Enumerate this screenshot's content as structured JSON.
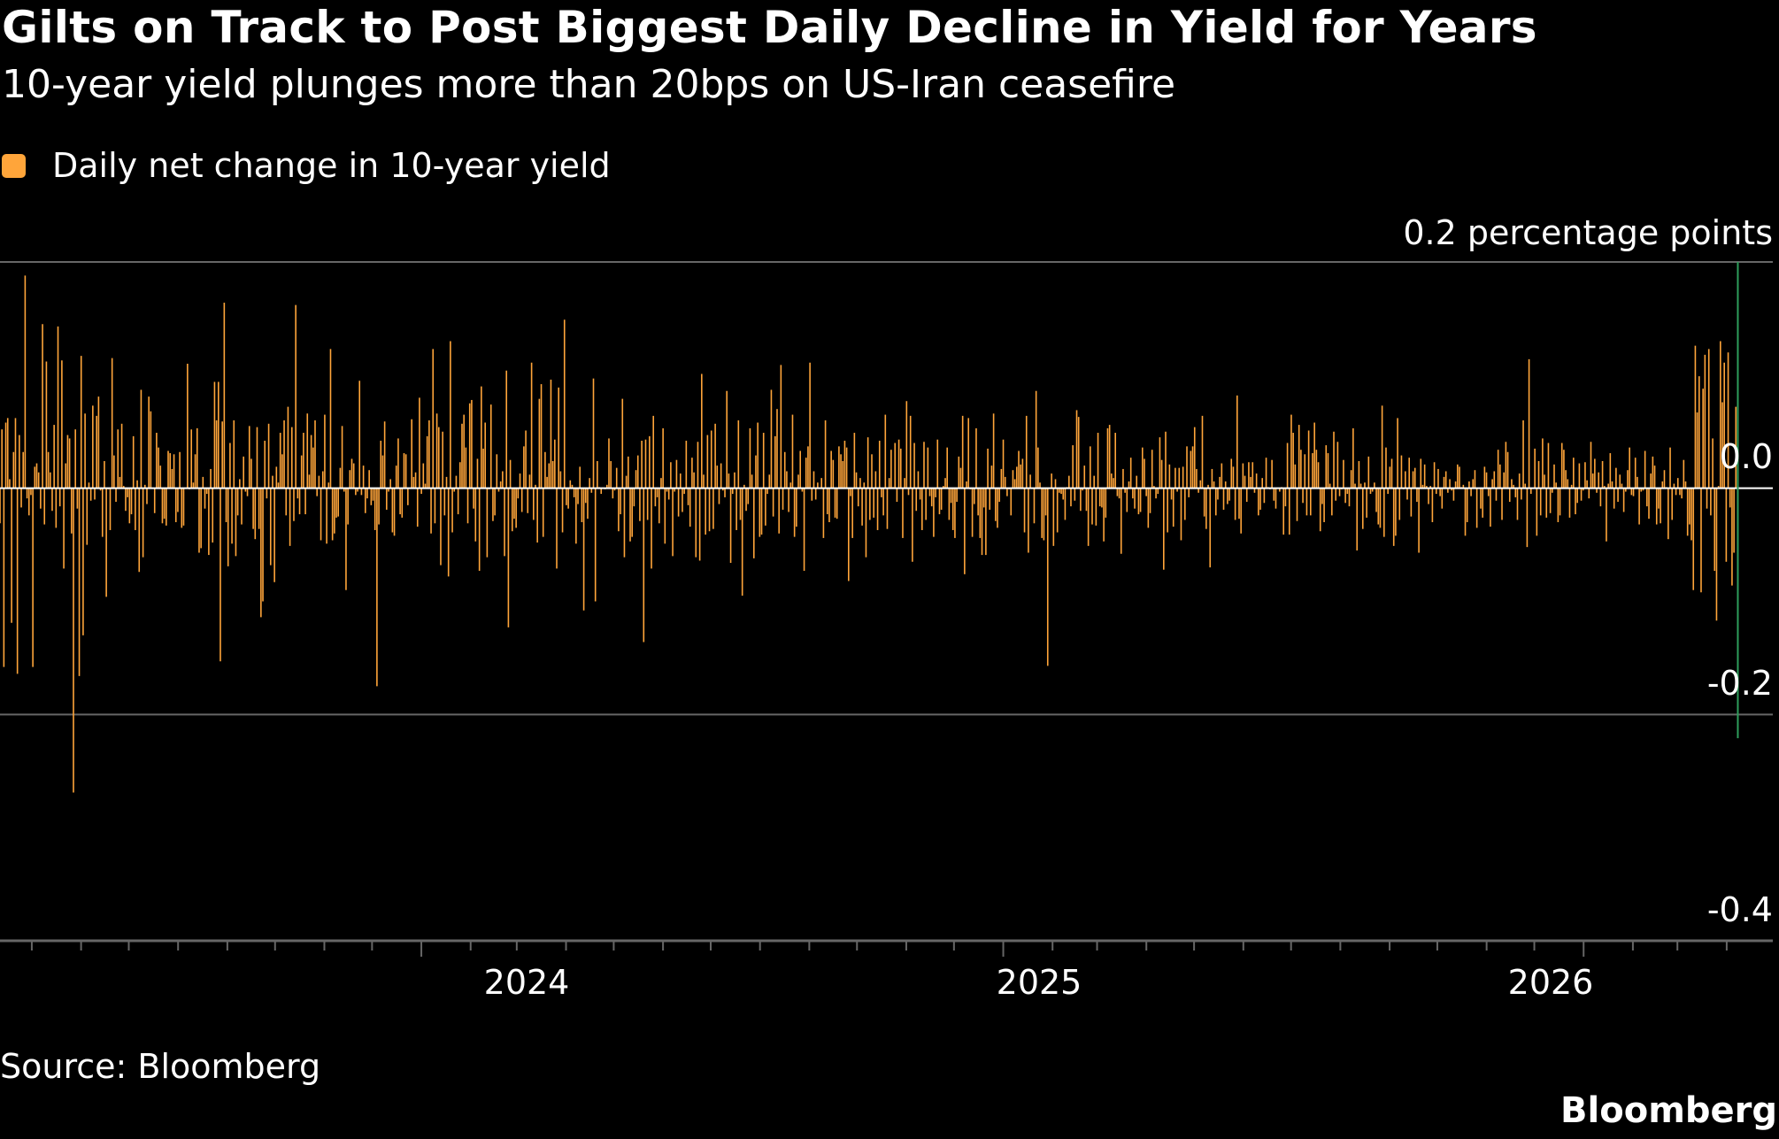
{
  "colors": {
    "background": "#000000",
    "bar": "#ffa53a",
    "zero_line": "#ffffff",
    "gridline": "#666666",
    "latest_bar": "#2f9e5c"
  },
  "chart_data": {
    "type": "bar",
    "title": "Gilts on Track to Post Biggest Daily Decline in Yield for Years",
    "subtitle": "10-year yield plunges more than 20bps on US-Iran ceasefire",
    "legend": {
      "position": "top-left",
      "entries": [
        "Daily net change in 10-year yield"
      ]
    },
    "y_unit_label": "0.2 percentage points",
    "y_tick_labels": [
      "0.0",
      "-0.2",
      "-0.4"
    ],
    "ylim": [
      -0.4,
      0.2
    ],
    "y_ticks": [
      0.2,
      0.0,
      -0.2,
      -0.4
    ],
    "x_range": [
      "2023-04-11",
      "2026-04-30"
    ],
    "x_tick_labels": [
      "2024",
      "2025",
      "2026"
    ],
    "x_ticks": [
      "2024-01-01",
      "2025-01-01",
      "2026-01-01"
    ],
    "grid": "horizontal",
    "series": [
      {
        "name": "Daily net change in 10-year yield",
        "color": "#ffa53a",
        "x_start": "2023-04-11",
        "x_end": "2026-04-08",
        "values": [
          -0.031,
          0.052,
          -0.158,
          0.058,
          0.062,
          0.008,
          -0.119,
          0.032,
          0.062,
          -0.164,
          0.047,
          -0.017,
          0.032,
          0.188,
          -0.009,
          -0.024,
          -0.006,
          -0.158,
          0.019,
          0.022,
          0.014,
          -0.018,
          0.145,
          -0.032,
          0.112,
          0.032,
          0.014,
          -0.02,
          0.056,
          -0.035,
          0.143,
          -0.016,
          0.113,
          -0.071,
          0.022,
          0.047,
          0.044,
          -0.04,
          -0.269,
          0.052,
          -0.018,
          -0.166,
          0.117,
          -0.13,
          0.066,
          -0.05,
          0.005,
          -0.011,
          0.073,
          -0.01,
          0.064,
          0.081,
          -0.002,
          -0.043,
          0.024,
          -0.096,
          -0.001,
          -0.037,
          0.115,
          0.029,
          -0.012,
          0.052,
          0.01,
          0.057,
          0.002,
          -0.02,
          -0.008,
          -0.031,
          -0.023,
          0.046,
          -0.037,
          0.007,
          -0.074,
          0.087,
          -0.061,
          0.003,
          -0.014,
          0.081,
          0.068,
          0.0,
          -0.022,
          0.049,
          0.036,
          0.02,
          -0.031,
          -0.027,
          -0.033,
          0.033,
          0.031,
          0.017,
          0.03,
          -0.03,
          -0.021,
          0.032,
          -0.035,
          -0.033,
          0.0,
          0.11,
          -0.001,
          0.052,
          0.005,
          0.03,
          0.053,
          -0.057,
          -0.053,
          0.01,
          -0.018,
          -0.005,
          -0.059,
          0.017,
          -0.048,
          0.094,
          0.06,
          0.094,
          -0.153,
          0.059,
          0.164,
          -0.03,
          -0.069,
          0.04,
          -0.049,
          0.06,
          -0.06,
          -0.024,
          0.008,
          -0.032,
          0.028,
          -0.003,
          -0.007,
          0.055,
          0.026,
          -0.036,
          -0.045,
          0.054,
          -0.036,
          -0.114,
          -0.1,
          0.042,
          -0.009,
          0.057,
          -0.068,
          0.011,
          -0.083,
          0.019,
          0.005,
          0.049,
          0.03,
          0.06,
          -0.024,
          0.072,
          -0.051,
          0.054,
          -0.029,
          0.162,
          -0.009,
          -0.023,
          0.029,
          0.049,
          -0.023,
          0.066,
          0.012,
          0.047,
          0.036,
          0.06,
          -0.007,
          0.011,
          -0.046,
          0.015,
          0.065,
          -0.049,
          0.005,
          0.123,
          -0.046,
          -0.04,
          -0.026,
          -0.025,
          0.018,
          0.055,
          -0.003,
          -0.09,
          -0.032,
          0.016,
          0.026,
          0.022,
          -0.006,
          -0.003,
          0.095,
          -0.006,
          0.02,
          -0.022,
          -0.009,
          0.016,
          -0.015,
          -0.011,
          -0.037,
          -0.175,
          -0.032,
          0.042,
          0.029,
          0.059,
          -0.019,
          -0.003,
          0.008,
          -0.039,
          -0.042,
          0.02,
          0.044,
          -0.023,
          -0.026,
          0.031,
          0.03,
          -0.015,
          0.0,
          0.061,
          0.01,
          0.014,
          -0.034,
          0.08,
          -0.005,
          0.022,
          0.004,
          0.046,
          0.06,
          -0.04,
          0.123,
          -0.031,
          0.066,
          0.054,
          -0.068,
          0.05,
          -0.024,
          0.01,
          -0.078,
          0.13,
          -0.039,
          -0.003,
          0.011,
          -0.023,
          0.023,
          0.057,
          0.065,
          0.036,
          -0.031,
          0.075,
          0.078,
          -0.018,
          -0.047,
          0.026,
          -0.073,
          0.09,
          0.035,
          0.058,
          -0.061,
          -0.001,
          0.074,
          -0.029,
          -0.024,
          0.03,
          -0.003,
          0.006,
          0.015,
          -0.06,
          0.104,
          -0.123,
          0.025,
          -0.038,
          -0.027,
          -0.035,
          -0.009,
          0.013,
          -0.021,
          0.037,
          0.051,
          -0.022,
          0.012,
          0.111,
          -0.028,
          0.003,
          -0.048,
          0.079,
          0.092,
          -0.043,
          0.032,
          0.01,
          0.022,
          0.096,
          0.024,
          0.043,
          -0.071,
          0.089,
          0.015,
          -0.039,
          0.149,
          -0.015,
          -0.018,
          0.007,
          0.003,
          -0.008,
          -0.049,
          -0.014,
          0.019,
          -0.03,
          -0.108,
          -0.013,
          -0.027,
          0.009,
          -0.004,
          0.097,
          -0.1,
          0.024,
          0.001,
          -0.005,
          0.0,
          -0.001,
          0.003,
          0.044,
          0.024,
          -0.009,
          -0.002,
          0.018,
          -0.038,
          -0.023,
          0.079,
          -0.061,
          0.011,
          0.028,
          -0.047,
          -0.043,
          -0.016,
          0.016,
          0.029,
          -0.029,
          0.042,
          -0.136,
          0.043,
          -0.028,
          0.046,
          -0.071,
          0.064,
          -0.016,
          -0.008,
          -0.031,
          0.009,
          0.053,
          -0.049,
          -0.003,
          -0.01,
          0.023,
          -0.06,
          -0.003,
          0.025,
          -0.025,
          0.013,
          -0.021,
          -0.005,
          0.042,
          -0.015,
          -0.034,
          0.027,
          0.014,
          -0.061,
          0.041,
          -0.064,
          0.101,
          0.012,
          -0.041,
          0.047,
          -0.038,
          0.051,
          -0.036,
          0.057,
          0.02,
          -0.014,
          0.022,
          -0.002,
          -0.008,
          0.086,
          0.013,
          -0.066,
          -0.005,
          0.014,
          -0.037,
          0.06,
          -0.028,
          -0.095,
          0.003,
          -0.02,
          -0.014,
          0.053,
          0.012,
          -0.062,
          0.029,
          0.058,
          -0.043,
          -0.041,
          0.049,
          -0.033,
          -0.005,
          0.012,
          0.087,
          -0.025,
          0.046,
          0.07,
          -0.04,
          0.109,
          -0.019,
          0.032,
          0.015,
          -0.021,
          0.005,
          0.065,
          -0.043,
          -0.034,
          0.012,
          0.033,
          -0.003,
          -0.073,
          0.027,
          0.037,
          0.111,
          -0.011,
          0.015,
          -0.01,
          0.005,
          0.0,
          0.009,
          -0.044,
          0.06,
          -0.023,
          -0.03,
          0.033,
          0.025,
          -0.026,
          -0.027,
          0.037,
          0.03,
          0.024,
          0.042,
          0.036,
          -0.082,
          -0.007,
          -0.044,
          0.049,
          0.014,
          -0.016,
          0.009,
          -0.033,
          0.005,
          -0.061,
          0.045,
          -0.028,
          0.03,
          -0.026,
          0.015,
          -0.037,
          0.042,
          -0.008,
          -0.024,
          0.065,
          -0.036,
          0.009,
          0.034,
          0.001,
          0.04,
          -0.012,
          0.043,
          0.035,
          -0.044,
          0.009,
          0.077,
          -0.006,
          0.064,
          -0.065,
          0.04,
          -0.02,
          0.015,
          -0.01,
          -0.037,
          0.041,
          -0.028,
          0.036,
          -0.007,
          -0.016,
          -0.043,
          -0.008,
          0.043,
          -0.023,
          -0.019,
          0.002,
          0.009,
          0.036,
          -0.028,
          -0.013,
          -0.037,
          -0.044,
          -0.012,
          0.028,
          0.018,
          0.064,
          -0.076,
          0.006,
          0.062,
          -0.001,
          -0.043,
          -0.014,
          0.053,
          -0.024,
          -0.044,
          -0.059,
          -0.017,
          -0.059,
          0.035,
          -0.019,
          0.02,
          0.066,
          -0.029,
          -0.035,
          -0.012,
          0.017,
          0.043,
          0.01,
          -0.007,
          -0.001,
          -0.024,
          0.016,
          0.008,
          0.019,
          0.033,
          0.021,
          0.026,
          -0.039,
          0.064,
          -0.057,
          0.012,
          0.0,
          -0.031,
          0.086,
          0.036,
          0.005,
          -0.044,
          -0.046,
          -0.024,
          -0.157,
          0.0,
          0.013,
          -0.051,
          0.008,
          -0.039,
          -0.004,
          -0.005,
          -0.01,
          -0.028,
          0.001,
          0.011,
          -0.016,
          0.038,
          -0.011,
          0.069,
          0.063,
          -0.02,
          -0.002,
          0.02,
          -0.02,
          -0.051,
          0.037,
          -0.032,
          0.011,
          -0.033,
          0.049,
          -0.016,
          -0.017,
          -0.047,
          -0.026,
          0.053,
          0.056,
          0.013,
          0.009,
          0.049,
          -0.007,
          -0.009,
          -0.058,
          0.017,
          -0.004,
          -0.021,
          0.006,
          0.027,
          -0.009,
          -0.018,
          0.011,
          -0.023,
          -0.021,
          0.036,
          0.026,
          -0.007,
          -0.035,
          -0.022,
          0.034,
          0.002,
          -0.009,
          -0.005,
          0.045,
          0.025,
          -0.072,
          0.05,
          -0.039,
          0.021,
          -0.01,
          -0.034,
          0.018,
          -0.003,
          0.018,
          -0.046,
          0.019,
          -0.028,
          0.037,
          -0.008,
          0.033,
          0.037,
          0.054,
          0.017,
          -0.004,
          0.007,
          0.064,
          -0.025,
          -0.036,
          0.003,
          -0.07,
          0.017,
          0.006,
          -0.024,
          -0.01,
          0.01,
          0.022,
          -0.019,
          0.006,
          -0.014,
          -0.011,
          0.026,
          0.019,
          -0.028,
          0.082,
          -0.027,
          -0.04,
          0.022,
          0.011,
          -0.012,
          0.023,
          0.01,
          0.023,
          -0.004,
          0.013,
          -0.024,
          -0.019,
          0.009,
          -0.013,
          0.027,
          0.001,
          -0.001,
          0.025,
          -0.011,
          -0.018,
          0.0,
          -0.003,
          0.001,
          -0.041,
          -0.016,
          0.04,
          -0.041,
          0.065,
          0.049,
          0.021,
          -0.029,
          0.056,
          0.034,
          -0.013,
          0.03,
          -0.024,
          0.051,
          -0.024,
          0.031,
          0.058,
          0.034,
          0.023,
          -0.038,
          -0.014,
          -0.03,
          0.038,
          0.031,
          0.004,
          -0.024,
          0.05,
          -0.011,
          0.041,
          -0.007,
          -0.001,
          0.025,
          -0.013,
          -0.005,
          -0.016,
          0.016,
          0.053,
          0.004,
          -0.055,
          0.024,
          0.004,
          -0.036,
          0.005,
          -0.026,
          0.028,
          -0.005,
          -0.003,
          0.005,
          -0.021,
          -0.032,
          -0.035,
          0.073,
          -0.043,
          0.036,
          -0.005,
          0.019,
          0.026,
          -0.051,
          -0.042,
          0.062,
          -0.028,
          0.029,
          -0.001,
          0.015,
          -0.01,
          0.027,
          -0.025,
          0.015,
          0.018,
          -0.012,
          -0.057,
          0.026,
          0.003,
          0.021,
          0.002,
          -0.014,
          0.002,
          -0.03,
          0.023,
          -0.005,
          0.017,
          -0.007,
          -0.018,
          0.01,
          0.015,
          -0.004,
          0.008,
          -0.002,
          -0.011,
          0.006,
          0.021,
          0.019,
          0.001,
          0.003,
          -0.042,
          -0.03,
          0.006,
          -0.007,
          0.008,
          0.016,
          -0.035,
          0.0,
          -0.018,
          -0.026,
          0.019,
          0.014,
          -0.007,
          -0.034,
          0.008,
          0.015,
          -0.011,
          0.034,
          0.021,
          -0.028,
          0.014,
          0.041,
          0.032,
          -0.012,
          0.008,
          0.003,
          -0.008,
          -0.028,
          0.013,
          -0.01,
          0.06,
          0.004,
          -0.052,
          0.114,
          -0.005,
          0.0,
          0.035,
          -0.042,
          0.024,
          -0.024,
          0.044,
          0.012,
          -0.026,
          0.04,
          -0.022,
          -0.004,
          0.021,
          0.005,
          -0.03,
          -0.024,
          0.04,
          0.034,
          0.016,
          0.008,
          -0.026,
          0.003,
          0.027,
          -0.023,
          -0.013,
          0.022,
          -0.011,
          -0.002,
          0.023,
          0.007,
          -0.009,
          0.041,
          0.013,
          0.026,
          -0.004,
          0.014,
          -0.016,
          0.024,
          0.002,
          -0.047,
          0.004,
          0.031,
          0.006,
          -0.018,
          0.018,
          -0.012,
          0.012,
          0.004,
          -0.021,
          -0.003,
          0.016,
          0.036,
          -0.006,
          -0.007,
          0.027,
          0.01,
          -0.032,
          -0.003,
          -0.002,
          0.033,
          -0.016,
          -0.027,
          0.013,
          0.028,
          0.02,
          -0.032,
          -0.018,
          -0.031,
          0.006,
          0.016,
          0.001,
          -0.045,
          0.036,
          -0.028,
          0.004,
          -0.006,
          0.009,
          -0.006,
          -0.009,
          0.025,
          0.006,
          -0.042,
          -0.032,
          -0.046,
          -0.09,
          0.126,
          0.067,
          0.099,
          -0.092,
          0.088,
          0.118,
          -0.018,
          0.123,
          -0.024,
          0.044,
          -0.073,
          -0.117,
          0.002,
          0.13,
          0.076,
          0.111,
          -0.065,
          0.12,
          -0.017,
          -0.086,
          -0.057,
          0.072
        ]
      }
    ],
    "latest": {
      "date": "2026-04-08",
      "value": -0.221,
      "color": "#2f9e5c"
    }
  },
  "footer": {
    "source": "Source: Bloomberg",
    "brand": "Bloomberg"
  }
}
